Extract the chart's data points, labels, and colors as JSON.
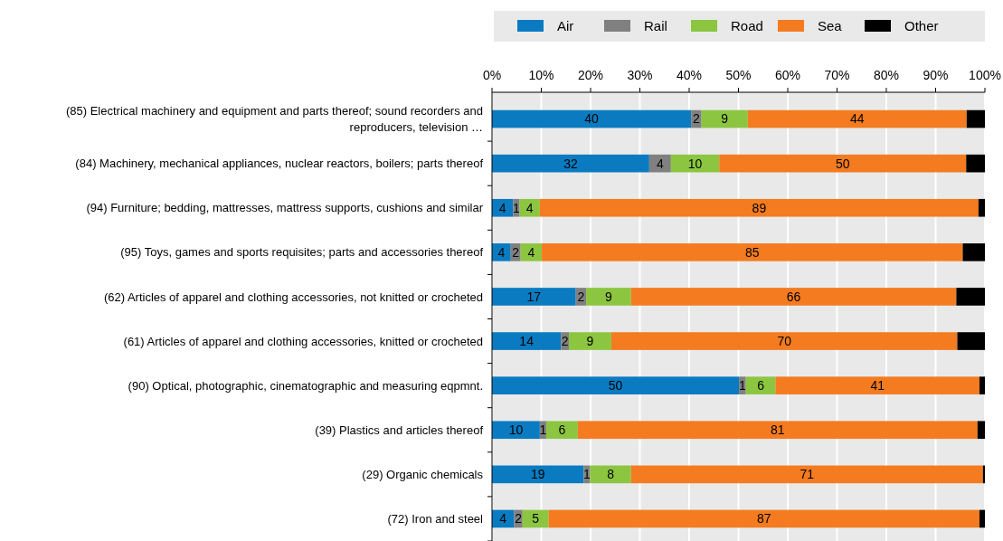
{
  "chart_data": {
    "type": "bar",
    "orientation": "horizontal",
    "stacked": true,
    "legend": "top",
    "grid": "x",
    "categories": [
      "(85) Electrical machinery and equipment and parts thereof; sound recorders and reproducers, television …",
      "(84) Machinery, mechanical appliances, nuclear reactors, boilers; parts thereof",
      "(94) Furniture; bedding, mattresses, mattress supports, cushions and similar",
      "(95) Toys, games and sports requisites; parts and accessories thereof",
      "(62) Articles of apparel and clothing accessories, not knitted or crocheted",
      "(61) Articles of apparel and clothing accessories, knitted or crocheted",
      "(90) Optical, photographic, cinematographic and measuring eqpmnt.",
      "(39) Plastics and articles thereof",
      "(29) Organic chemicals",
      "(72) Iron and steel"
    ],
    "xlim": [
      0,
      100
    ],
    "xticks": [
      {
        "value": 0,
        "label": "0%"
      },
      {
        "value": 10,
        "label": "10%"
      },
      {
        "value": 20,
        "label": "20%"
      },
      {
        "value": 30,
        "label": "30%"
      },
      {
        "value": 40,
        "label": "40%"
      },
      {
        "value": 50,
        "label": "50%"
      },
      {
        "value": 60,
        "label": "60%"
      },
      {
        "value": 70,
        "label": "70%"
      },
      {
        "value": 80,
        "label": "80%"
      },
      {
        "value": 90,
        "label": "90%"
      },
      {
        "value": 100,
        "label": "100%"
      }
    ],
    "series": [
      {
        "name": "Air",
        "color": "#0a7bc1",
        "values": [
          40.4,
          31.9,
          4.3,
          3.8,
          17.0,
          14.0,
          50.1,
          9.7,
          18.6,
          4.5
        ],
        "value_labels": [
          "40",
          "32",
          "4",
          "4",
          "17",
          "14",
          "50",
          "10",
          "19",
          "4"
        ]
      },
      {
        "name": "Rail",
        "color": "#808080",
        "values": [
          2.1,
          4.4,
          1.3,
          2.0,
          2.1,
          1.6,
          1.4,
          1.3,
          1.3,
          1.7
        ],
        "value_labels": [
          "2",
          "4",
          "1",
          "2",
          "2",
          "2",
          "1",
          "1",
          "1",
          "2"
        ]
      },
      {
        "name": "Road",
        "color": "#8cc641",
        "values": [
          9.4,
          9.8,
          4.1,
          4.3,
          9.1,
          8.6,
          6.0,
          6.4,
          8.3,
          5.3
        ],
        "value_labels": [
          "9",
          "10",
          "4",
          "4",
          "9",
          "9",
          "6",
          "6",
          "8",
          "5"
        ]
      },
      {
        "name": "Sea",
        "color": "#f47b20",
        "values": [
          44.4,
          50.1,
          89.0,
          85.4,
          66.0,
          70.2,
          41.4,
          81.1,
          71.4,
          87.4
        ],
        "value_labels": [
          "44",
          "50",
          "89",
          "85",
          "66",
          "70",
          "41",
          "81",
          "71",
          "87"
        ]
      },
      {
        "name": "Other",
        "color": "#000000",
        "values": [
          3.7,
          3.8,
          1.3,
          4.5,
          5.8,
          5.6,
          1.1,
          1.5,
          0.4,
          1.1
        ],
        "value_labels": [
          null,
          null,
          null,
          null,
          null,
          null,
          null,
          null,
          null,
          null
        ]
      }
    ]
  }
}
